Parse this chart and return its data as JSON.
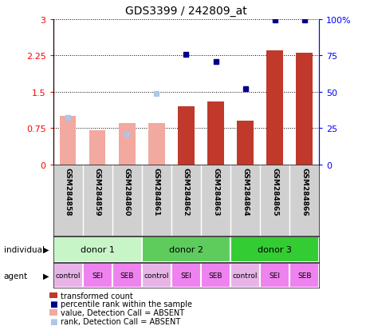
{
  "title": "GDS3399 / 242809_at",
  "samples": [
    "GSM284858",
    "GSM284859",
    "GSM284860",
    "GSM284861",
    "GSM284862",
    "GSM284863",
    "GSM284864",
    "GSM284865",
    "GSM284866"
  ],
  "transformed_count": [
    null,
    null,
    null,
    null,
    1.2,
    1.3,
    0.9,
    2.35,
    2.3
  ],
  "transformed_count_absent": [
    1.0,
    0.7,
    0.85,
    0.85,
    null,
    null,
    null,
    null,
    null
  ],
  "percentile_rank_left": [
    null,
    null,
    null,
    null,
    2.27,
    2.13,
    1.57,
    2.98,
    2.98
  ],
  "percentile_rank_absent_left": [
    0.97,
    null,
    0.63,
    1.47,
    null,
    null,
    null,
    null,
    null
  ],
  "bar_color_present": "#c0392b",
  "bar_color_absent": "#f1a9a0",
  "dot_color_present": "#00008b",
  "dot_color_absent": "#aec6e8",
  "ylim_left": [
    0,
    3
  ],
  "ylim_right": [
    0,
    100
  ],
  "yticks_left": [
    0,
    0.75,
    1.5,
    2.25,
    3
  ],
  "ytick_labels_left": [
    "0",
    "0.75",
    "1.5",
    "2.25",
    "3"
  ],
  "yticks_right": [
    0,
    25,
    50,
    75,
    100
  ],
  "ytick_labels_right": [
    "0",
    "25",
    "50",
    "75",
    "100%"
  ],
  "donors": [
    {
      "label": "donor 1",
      "start": 0,
      "end": 3,
      "color": "#c8f5c8"
    },
    {
      "label": "donor 2",
      "start": 3,
      "end": 6,
      "color": "#5dcc5d"
    },
    {
      "label": "donor 3",
      "start": 6,
      "end": 9,
      "color": "#33cc33"
    }
  ],
  "agents": [
    "control",
    "SEI",
    "SEB",
    "control",
    "SEI",
    "SEB",
    "control",
    "SEI",
    "SEB"
  ],
  "agent_colors": [
    "#e8b4e8",
    "#ee82ee",
    "#ee82ee",
    "#e8b4e8",
    "#ee82ee",
    "#ee82ee",
    "#e8b4e8",
    "#ee82ee",
    "#ee82ee"
  ],
  "legend_items": [
    {
      "label": "transformed count",
      "color": "#c0392b",
      "type": "bar"
    },
    {
      "label": "percentile rank within the sample",
      "color": "#00008b",
      "type": "dot"
    },
    {
      "label": "value, Detection Call = ABSENT",
      "color": "#f1a9a0",
      "type": "bar"
    },
    {
      "label": "rank, Detection Call = ABSENT",
      "color": "#aec6e8",
      "type": "dot"
    }
  ],
  "sample_bg": "#d0d0d0"
}
